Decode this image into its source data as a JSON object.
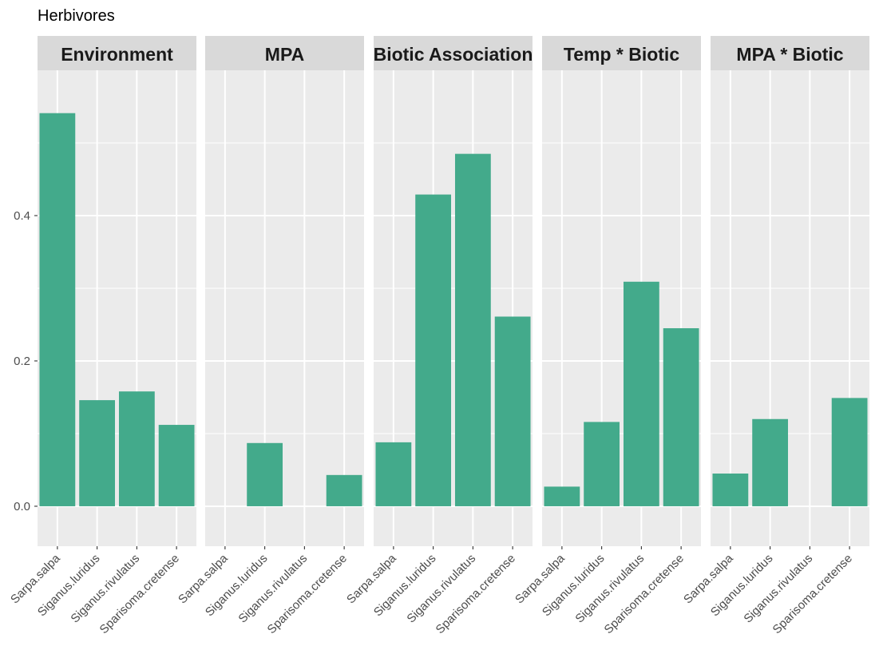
{
  "chart_data": {
    "type": "bar",
    "title": "Herbivores",
    "xlabel": "",
    "ylabel": "",
    "ylim": [
      -0.055,
      0.6
    ],
    "y_ticks": [
      0.0,
      0.2,
      0.4
    ],
    "y_tick_labels": [
      "0.0",
      "0.2",
      "0.4"
    ],
    "grid": true,
    "bar_color": "#43AA8B",
    "categories": [
      "Sarpa.salpa",
      "Siganus.luridus",
      "Siganus.rivulatus",
      "Sparisoma.cretense"
    ],
    "facets": [
      {
        "name": "Environment",
        "values": [
          0.541,
          0.146,
          0.158,
          0.112
        ]
      },
      {
        "name": "MPA",
        "values": [
          0.0,
          0.087,
          0.0,
          0.043
        ]
      },
      {
        "name": "Biotic Association",
        "values": [
          0.088,
          0.429,
          0.485,
          0.261
        ]
      },
      {
        "name": "Temp * Biotic",
        "values": [
          0.027,
          0.116,
          0.309,
          0.245
        ]
      },
      {
        "name": "MPA * Biotic",
        "values": [
          0.045,
          0.12,
          0.0,
          0.149
        ]
      }
    ]
  }
}
